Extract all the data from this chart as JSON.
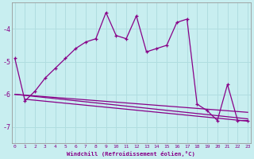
{
  "xlabel": "Windchill (Refroidissement éolien,°C)",
  "background_color": "#c8eef0",
  "grid_color": "#b0dde0",
  "line_color": "#880088",
  "hours": [
    0,
    1,
    2,
    3,
    4,
    5,
    6,
    7,
    8,
    9,
    10,
    11,
    12,
    13,
    14,
    15,
    16,
    17,
    18,
    19,
    20,
    21,
    22,
    23
  ],
  "windchill": [
    -4.9,
    -6.2,
    -5.9,
    -5.5,
    -5.2,
    -4.9,
    -4.6,
    -4.4,
    -4.3,
    -3.5,
    -4.2,
    -4.3,
    -3.6,
    -4.7,
    -4.6,
    -4.5,
    -3.8,
    -3.7,
    -6.3,
    -6.5,
    -6.8,
    -5.7,
    -6.8,
    -6.8
  ],
  "trend1_x": [
    0,
    23
  ],
  "trend1_y": [
    -6.0,
    -6.55
  ],
  "trend2_x": [
    0,
    23
  ],
  "trend2_y": [
    -6.0,
    -6.75
  ],
  "trend3_x": [
    1,
    23
  ],
  "trend3_y": [
    -6.15,
    -6.82
  ],
  "ylim_min": -7.5,
  "ylim_max": -3.2,
  "yticks": [
    -7,
    -6,
    -5,
    -4
  ],
  "xticks": [
    0,
    1,
    2,
    3,
    4,
    5,
    6,
    7,
    8,
    9,
    10,
    11,
    12,
    13,
    14,
    15,
    16,
    17,
    18,
    19,
    20,
    21,
    22,
    23
  ]
}
